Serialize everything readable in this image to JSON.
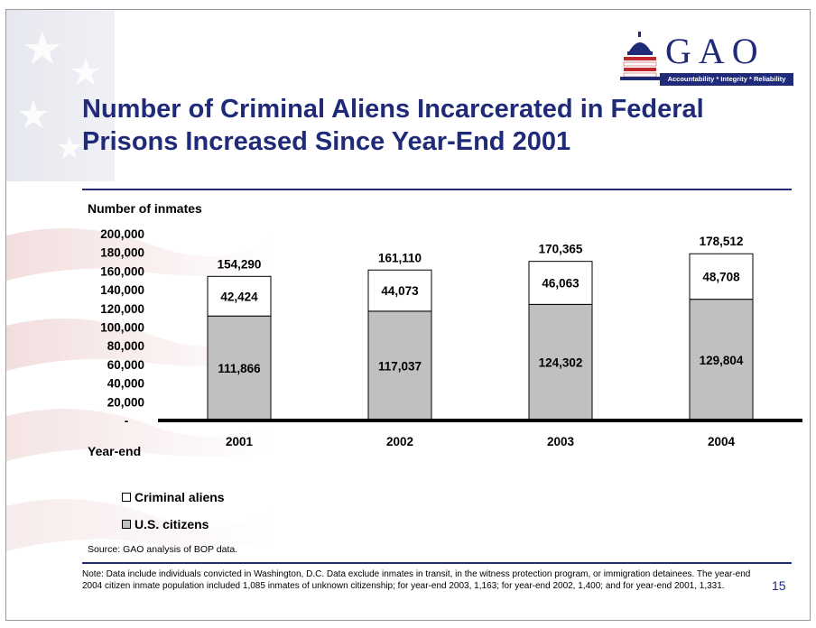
{
  "header": {
    "title": "Number of Criminal Aliens Incarcerated in Federal Prisons Increased Since Year-End 2001",
    "logo_text": "GAO",
    "logo_tagline": "Accountability * Integrity * Reliability"
  },
  "chart_data": {
    "type": "bar",
    "stacked": true,
    "title": "",
    "ylabel": "Number of inmates",
    "xlabel": "Year-end",
    "ylim": [
      0,
      200000
    ],
    "yticks": [
      "200,000",
      "180,000",
      "160,000",
      "140,000",
      "120,000",
      "100,000",
      "80,000",
      "60,000",
      "40,000",
      "20,000",
      "-"
    ],
    "ytick_values": [
      200000,
      180000,
      160000,
      140000,
      120000,
      100000,
      80000,
      60000,
      40000,
      20000,
      0
    ],
    "categories": [
      "2001",
      "2002",
      "2003",
      "2004"
    ],
    "series": [
      {
        "name": "U.S. citizens",
        "values": [
          111866,
          117037,
          124302,
          129804
        ],
        "labels": [
          "111,866",
          "117,037",
          "124,302",
          "129,804"
        ],
        "color": "#c0c0c0"
      },
      {
        "name": "Criminal aliens",
        "values": [
          42424,
          44073,
          46063,
          48708
        ],
        "labels": [
          "42,424",
          "44,073",
          "46,063",
          "48,708"
        ],
        "color": "#ffffff"
      }
    ],
    "totals": [
      154290,
      161110,
      170365,
      178512
    ],
    "total_labels": [
      "154,290",
      "161,110",
      "170,365",
      "178,512"
    ],
    "legend_position": "bottom-left",
    "grid": false
  },
  "legend": {
    "items": [
      {
        "label": "Criminal aliens",
        "color": "#ffffff"
      },
      {
        "label": "U.S. citizens",
        "color": "#c0c0c0"
      }
    ]
  },
  "footer": {
    "source": "Source: GAO analysis of BOP data.",
    "note": "Note: Data include individuals convicted in Washington, D.C.  Data exclude inmates in transit, in the witness protection program, or immigration detainees.  The year-end 2004 citizen inmate population included 1,085 inmates of unknown citizenship; for year-end 2003, 1,163; for year-end 2002, 1,400; and for year-end 2001, 1,331.",
    "page_number": "15"
  },
  "colors": {
    "title": "#1f2a78",
    "rule": "#1f2a78",
    "citizens_bar": "#c0c0c0",
    "aliens_bar": "#ffffff"
  }
}
